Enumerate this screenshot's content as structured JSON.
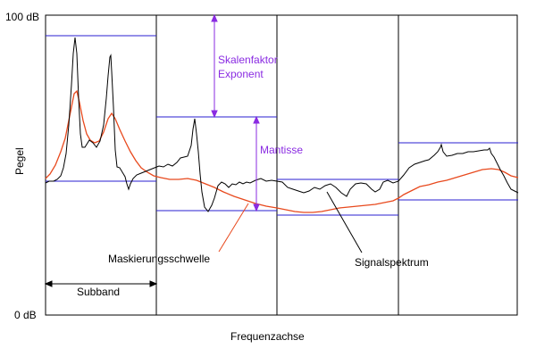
{
  "labels": {
    "y_top": "100 dB",
    "y_bottom": "0 dB",
    "y_axis": "Pegel",
    "x_axis": "Frequenzachse",
    "scale_factor_line1": "Skalenfaktor",
    "scale_factor_line2": "Exponent",
    "mantissa": "Mantisse",
    "masking_threshold": "Maskierungsschwelle",
    "signal_spectrum": "Signalspektrum",
    "subband": "Subband"
  },
  "colors": {
    "frame": "#000000",
    "subband_levels": "#2a1fd0",
    "annotation_arrows": "#8a2be2",
    "annotation_text": "#8a2be2",
    "masking_curve": "#e8491d",
    "signal_curve": "#000000"
  },
  "subbands": [
    {
      "index": 1,
      "scale_level_db": 94,
      "mantissa_floor_db": 45
    },
    {
      "index": 2,
      "scale_level_db": 67,
      "mantissa_floor_db": 35
    },
    {
      "index": 3,
      "scale_level_db": 46,
      "mantissa_floor_db": 34
    },
    {
      "index": 4,
      "scale_level_db": 58,
      "mantissa_floor_db": 39
    }
  ]
}
